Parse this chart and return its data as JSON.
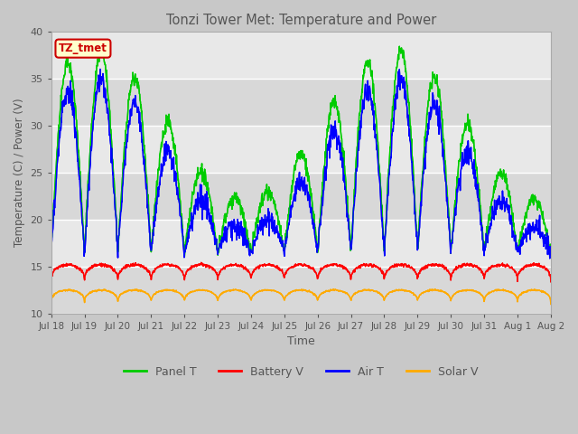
{
  "title": "Tonzi Tower Met: Temperature and Power",
  "xlabel": "Time",
  "ylabel": "Temperature (C) / Power (V)",
  "ylim": [
    10,
    40
  ],
  "xtick_labels": [
    "Jul 18",
    "Jul 19",
    "Jul 20",
    "Jul 21",
    "Jul 22",
    "Jul 23",
    "Jul 24",
    "Jul 25",
    "Jul 26",
    "Jul 27",
    "Jul 28",
    "Jul 29",
    "Jul 30",
    "Jul 31",
    "Aug 1",
    "Aug 2"
  ],
  "legend_labels": [
    "Panel T",
    "Battery V",
    "Air T",
    "Solar V"
  ],
  "panel_t_color": "#00cc00",
  "battery_v_color": "#ff0000",
  "air_t_color": "#0000ff",
  "solar_v_color": "#ffaa00",
  "annotation_text": "TZ_tmet",
  "annotation_bg": "#ffffcc",
  "annotation_border": "#cc0000",
  "fig_bg": "#c8c8c8",
  "plot_bg": "#e8e8e8",
  "grid_color": "#ffffff",
  "title_color": "#555555",
  "tick_color": "#555555",
  "n_days": 15,
  "ppd": 96,
  "linewidth": 1.0
}
